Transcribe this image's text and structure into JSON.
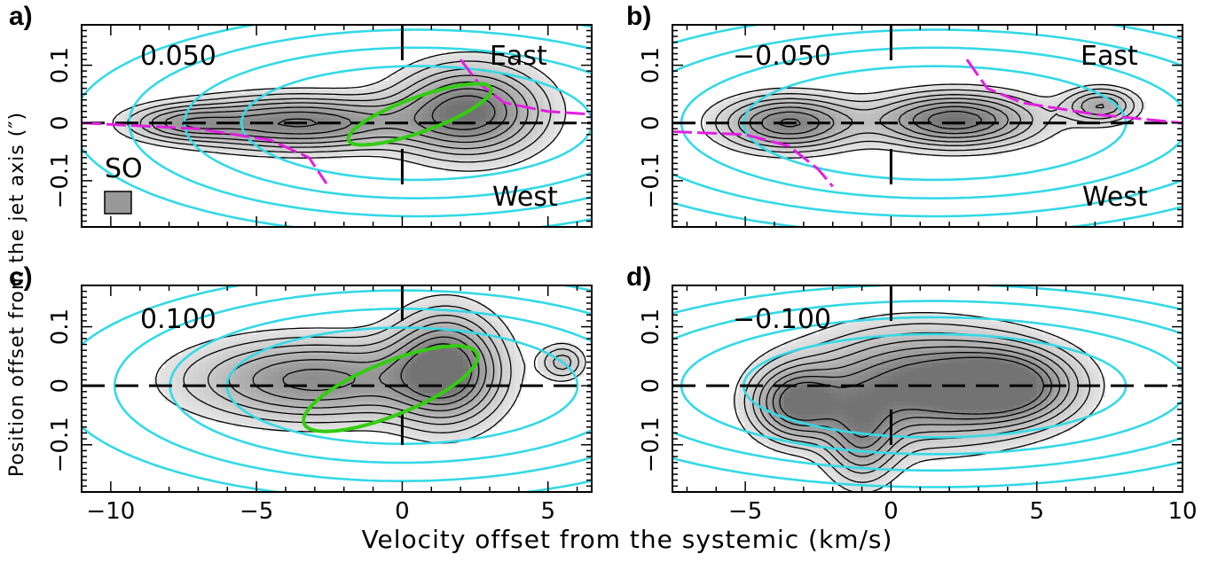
{
  "colors": {
    "model_contour": "#33d9e6",
    "fit_curve": "#e020e0",
    "ellipse": "#33cc11",
    "obs_contour": "#000000",
    "beam": "#999999"
  },
  "chart_data": [
    {
      "id": "a",
      "type": "contour",
      "panel_letter": "a)",
      "offset_label": "0.050",
      "east_label": "East",
      "west_label": "West",
      "molecule_label": "SO",
      "xlim": [
        -11,
        6.5
      ],
      "ylim": [
        -0.18,
        0.17
      ],
      "xticks": [
        -10,
        -5,
        0,
        5
      ],
      "yticks": [
        -0.1,
        0,
        0.1
      ],
      "ytick_labels": [
        "−0.1",
        "0",
        "0.1"
      ],
      "features": {
        "obs_blobs": [
          {
            "x": -3.5,
            "y": 0.0,
            "sx": 2.5,
            "sy": 0.03,
            "amp": 0.9
          },
          {
            "x": 2.3,
            "y": 0.02,
            "sx": 1.6,
            "sy": 0.05,
            "amp": 1.0
          },
          {
            "x": -7.5,
            "y": 0.0,
            "sx": 1.3,
            "sy": 0.02,
            "amp": 0.5
          }
        ],
        "model_blobs": [
          {
            "x": 0.5,
            "y": 0.0,
            "sx": 5.5,
            "sy": 0.09,
            "amp": 1.0
          }
        ],
        "fit_curves": [
          [
            [
              -11,
              0.0
            ],
            [
              -7,
              -0.01
            ],
            [
              -4.5,
              -0.03
            ],
            [
              -3.2,
              -0.06
            ],
            [
              -2.6,
              -0.105
            ]
          ],
          [
            [
              2.0,
              0.11
            ],
            [
              2.6,
              0.07
            ],
            [
              3.5,
              0.035
            ],
            [
              5,
              0.02
            ],
            [
              6.5,
              0.015
            ]
          ]
        ],
        "ellipse": {
          "cx": 0.6,
          "cy": 0.015,
          "rx": 2.6,
          "ry": 0.03,
          "angle_deg": 20
        }
      }
    },
    {
      "id": "b",
      "type": "contour",
      "panel_letter": "b)",
      "offset_label": "−0.050",
      "east_label": "East",
      "west_label": "West",
      "xlim": [
        -7.5,
        10
      ],
      "ylim": [
        -0.18,
        0.17
      ],
      "xticks": [
        -5,
        0,
        5,
        10
      ],
      "yticks": [
        -0.1,
        0,
        0.1
      ],
      "ytick_labels": [
        "−0.1",
        "0",
        "0.1"
      ],
      "features": {
        "obs_blobs": [
          {
            "x": -3.5,
            "y": 0.0,
            "sx": 1.5,
            "sy": 0.03,
            "amp": 0.9
          },
          {
            "x": 2.2,
            "y": 0.005,
            "sx": 1.8,
            "sy": 0.03,
            "amp": 1.0
          },
          {
            "x": 7.2,
            "y": 0.03,
            "sx": 0.8,
            "sy": 0.02,
            "amp": 0.6
          }
        ],
        "model_blobs": [
          {
            "x": 1.5,
            "y": 0.0,
            "sx": 6.0,
            "sy": 0.09,
            "amp": 1.0
          }
        ],
        "fit_curves": [
          [
            [
              -7.5,
              -0.015
            ],
            [
              -5,
              -0.02
            ],
            [
              -3.5,
              -0.04
            ],
            [
              -2.5,
              -0.08
            ],
            [
              -2.0,
              -0.11
            ]
          ],
          [
            [
              2.6,
              0.11
            ],
            [
              3.3,
              0.06
            ],
            [
              4.5,
              0.035
            ],
            [
              7,
              0.015
            ],
            [
              10,
              0.0
            ]
          ]
        ],
        "ellipse": null
      }
    },
    {
      "id": "c",
      "type": "contour",
      "panel_letter": "c)",
      "offset_label": "0.100",
      "xlim": [
        -11,
        6.5
      ],
      "ylim": [
        -0.18,
        0.17
      ],
      "xticks": [
        -10,
        -5,
        0,
        5
      ],
      "xtick_labels": [
        "−10",
        "−5",
        "0",
        "5"
      ],
      "yticks": [
        -0.1,
        0,
        0.1
      ],
      "ytick_labels": [
        "−0.1",
        "0",
        "0.1"
      ],
      "features": {
        "obs_blobs": [
          {
            "x": -3.0,
            "y": 0.01,
            "sx": 2.8,
            "sy": 0.045,
            "amp": 0.8
          },
          {
            "x": 1.5,
            "y": 0.03,
            "sx": 1.2,
            "sy": 0.06,
            "amp": 1.0
          },
          {
            "x": 5.5,
            "y": 0.04,
            "sx": 0.5,
            "sy": 0.02,
            "amp": 0.4
          }
        ],
        "model_blobs": [
          {
            "x": 0.0,
            "y": 0.0,
            "sx": 5.5,
            "sy": 0.09,
            "amp": 1.0
          }
        ],
        "fit_curves": [],
        "ellipse": {
          "cx": -0.4,
          "cy": -0.005,
          "rx": 3.2,
          "ry": 0.045,
          "angle_deg": 22
        }
      }
    },
    {
      "id": "d",
      "type": "contour",
      "panel_letter": "d)",
      "offset_label": "−0.100",
      "xlim": [
        -7.5,
        10
      ],
      "ylim": [
        -0.18,
        0.17
      ],
      "xticks": [
        -5,
        0,
        5,
        10
      ],
      "xtick_labels": [
        "−5",
        "0",
        "5",
        "10"
      ],
      "yticks": [
        -0.1,
        0,
        0.1
      ],
      "ytick_labels": [
        "−0.1",
        "0",
        "0.1"
      ],
      "features": {
        "obs_blobs": [
          {
            "x": -3.2,
            "y": -0.03,
            "sx": 1.0,
            "sy": 0.04,
            "amp": 0.9
          },
          {
            "x": 1.0,
            "y": 0.0,
            "sx": 2.5,
            "sy": 0.06,
            "amp": 1.0
          },
          {
            "x": 4.0,
            "y": 0.0,
            "sx": 1.5,
            "sy": 0.04,
            "amp": 0.9
          },
          {
            "x": -1.0,
            "y": -0.09,
            "sx": 0.8,
            "sy": 0.05,
            "amp": 0.6
          }
        ],
        "model_blobs": [
          {
            "x": 1.5,
            "y": 0.0,
            "sx": 6.0,
            "sy": 0.08,
            "amp": 1.0
          }
        ],
        "fit_curves": [],
        "ellipse": null
      }
    }
  ],
  "axes": {
    "xlabel": "Velocity offset from the systemic (km/s)",
    "ylabel": "Position offset from the jet axis (″)"
  }
}
